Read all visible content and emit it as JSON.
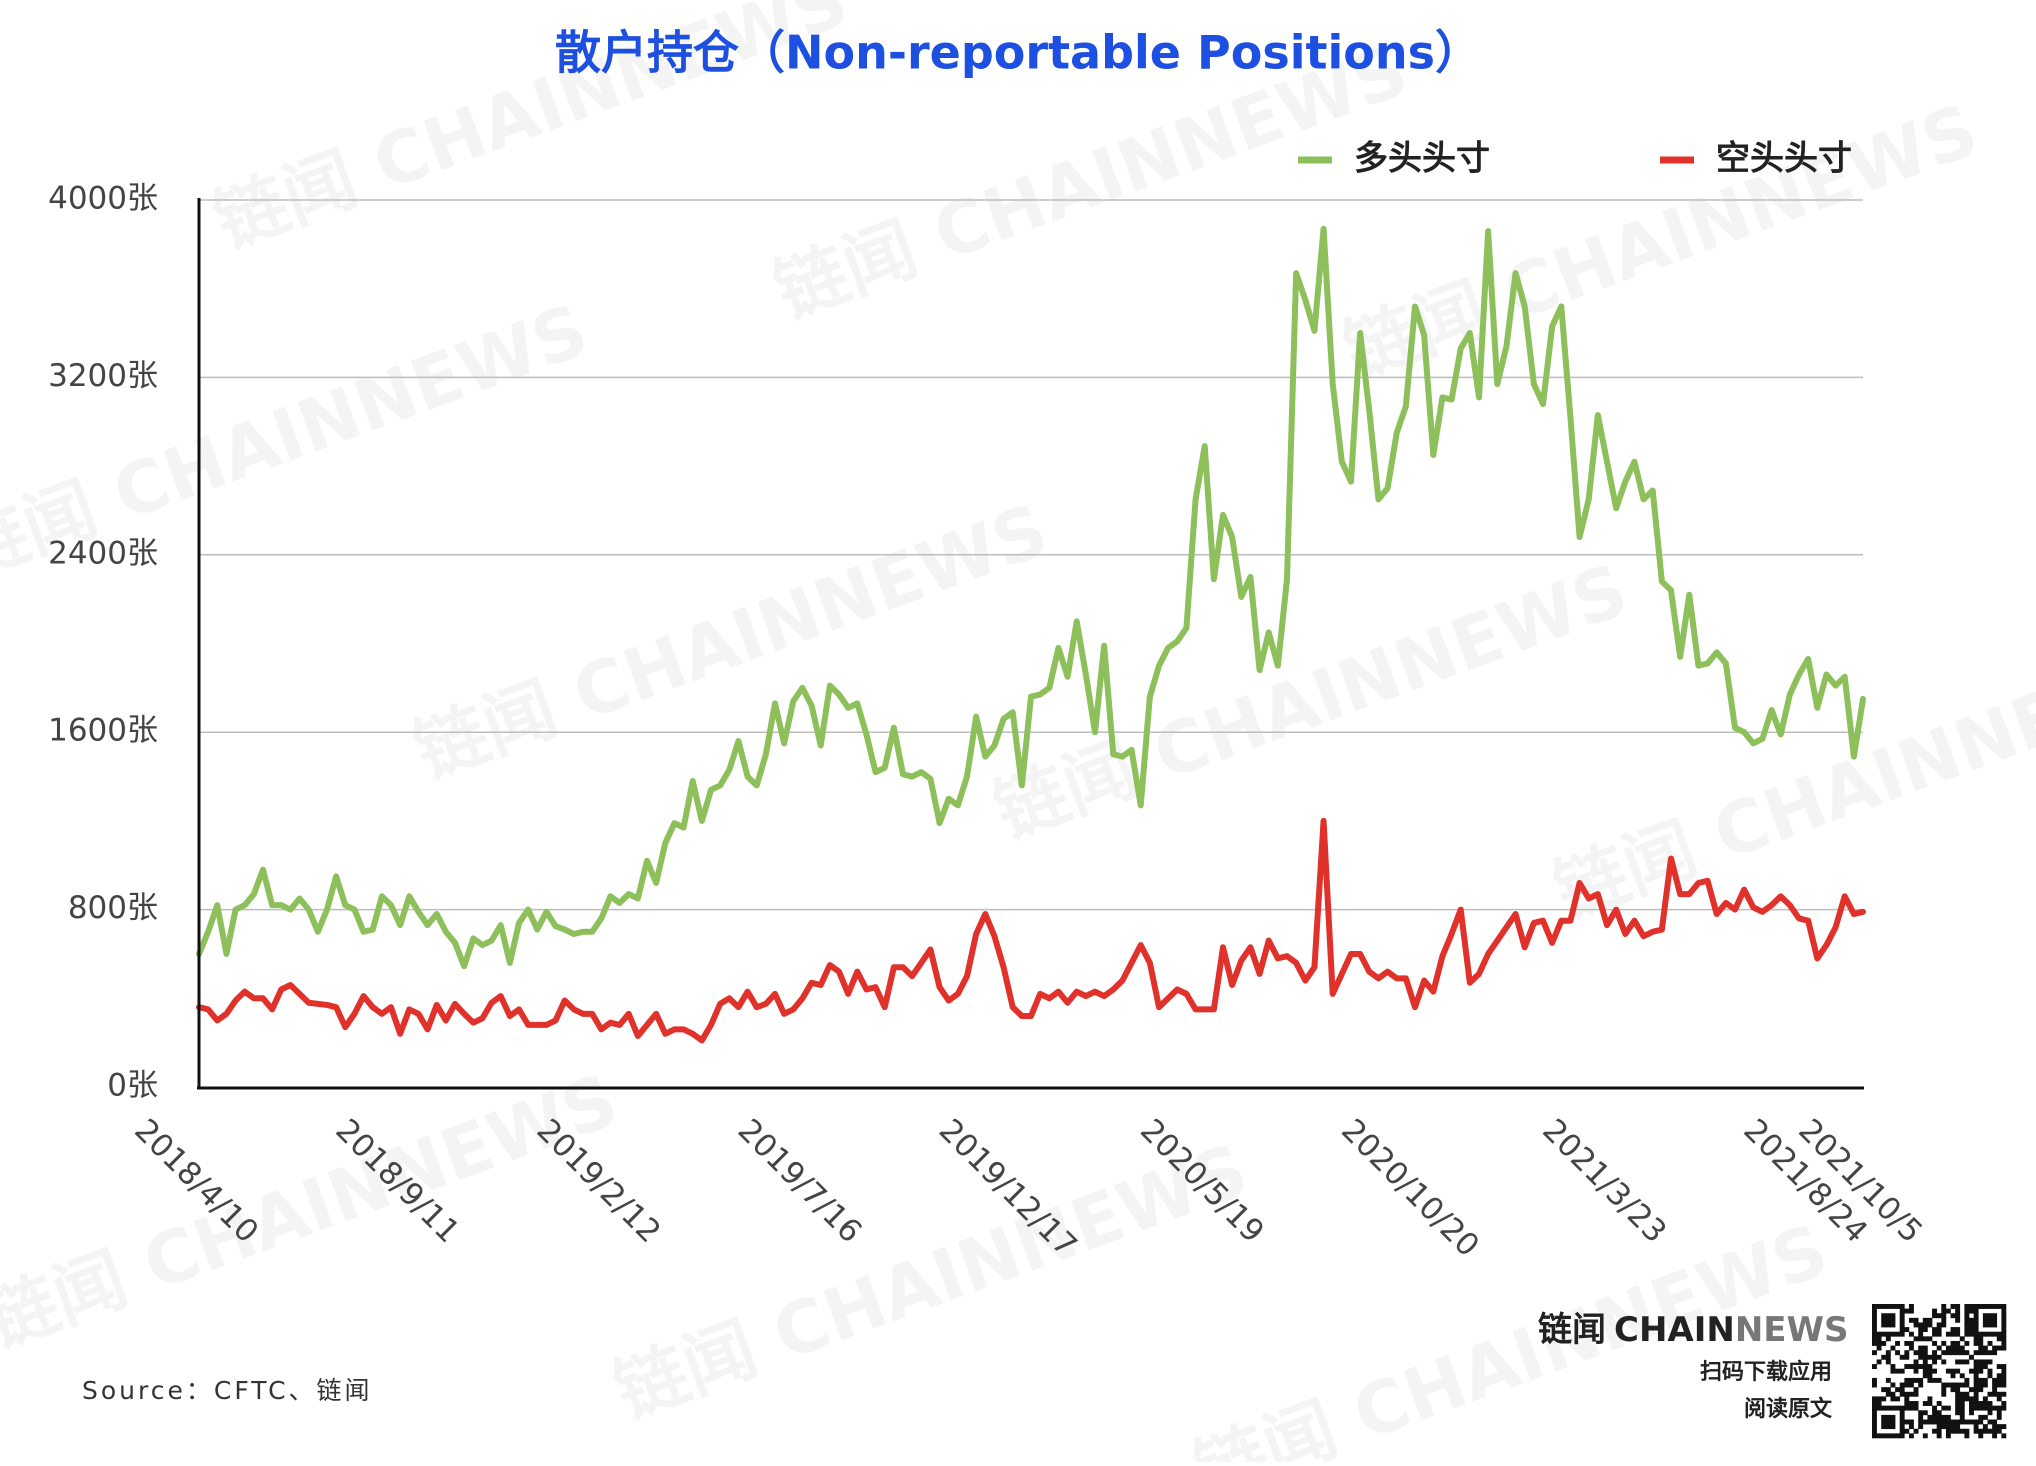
{
  "chart_data": {
    "type": "line",
    "title": "散户持仓（Non-reportable Positions）",
    "categories": [
      "2018/4/10",
      null,
      null,
      null,
      null,
      null,
      null,
      null,
      null,
      null,
      null,
      null,
      null,
      null,
      null,
      null,
      null,
      null,
      null,
      null,
      null,
      null,
      "2018/9/11",
      null,
      null,
      null,
      null,
      null,
      null,
      null,
      null,
      null,
      null,
      null,
      null,
      null,
      null,
      null,
      null,
      null,
      null,
      null,
      null,
      null,
      "2019/2/12",
      null,
      null,
      null,
      null,
      null,
      null,
      null,
      null,
      null,
      null,
      null,
      null,
      null,
      null,
      null,
      null,
      null,
      null,
      null,
      null,
      null,
      "2019/7/16",
      null,
      null,
      null,
      null,
      null,
      null,
      null,
      null,
      null,
      null,
      null,
      null,
      null,
      null,
      null,
      null,
      null,
      null,
      null,
      null,
      null,
      "2019/12/17",
      null,
      null,
      null,
      null,
      null,
      null,
      null,
      null,
      null,
      null,
      null,
      null,
      null,
      null,
      null,
      null,
      null,
      null,
      null,
      null,
      null,
      "2020/5/19",
      null,
      null,
      null,
      null,
      null,
      null,
      null,
      null,
      null,
      null,
      null,
      null,
      null,
      null,
      null,
      null,
      null,
      null,
      null,
      null,
      null,
      "2020/10/20",
      null,
      null,
      null,
      null,
      null,
      null,
      null,
      null,
      null,
      null,
      null,
      null,
      null,
      null,
      null,
      null,
      null,
      null,
      null,
      null,
      null,
      "2021/3/23",
      null,
      null,
      null,
      null,
      null,
      null,
      null,
      null,
      null,
      null,
      null,
      null,
      null,
      null,
      null,
      null,
      null,
      null,
      null,
      null,
      null,
      "2021/8/24",
      null,
      null,
      null,
      null,
      null,
      "2021/10/5"
    ],
    "series": [
      {
        "name": "多头头寸",
        "color": "#8dbf5a",
        "values": [
          600,
          700,
          820,
          600,
          800,
          820,
          870,
          980,
          820,
          820,
          800,
          850,
          800,
          700,
          800,
          950,
          820,
          800,
          700,
          710,
          860,
          820,
          730,
          860,
          790,
          730,
          780,
          700,
          650,
          545,
          670,
          640,
          660,
          730,
          560,
          740,
          800,
          710,
          790,
          725,
          710,
          690,
          700,
          700,
          760,
          860,
          830,
          870,
          850,
          1020,
          920,
          1100,
          1190,
          1170,
          1380,
          1200,
          1340,
          1360,
          1430,
          1560,
          1400,
          1360,
          1500,
          1730,
          1550,
          1740,
          1800,
          1720,
          1540,
          1810,
          1770,
          1710,
          1730,
          1590,
          1420,
          1440,
          1620,
          1410,
          1400,
          1420,
          1390,
          1190,
          1300,
          1270,
          1400,
          1670,
          1490,
          1540,
          1660,
          1690,
          1360,
          1760,
          1770,
          1800,
          1980,
          1850,
          2100,
          1860,
          1600,
          1990,
          1500,
          1490,
          1520,
          1270,
          1760,
          1900,
          1980,
          2010,
          2070,
          2650,
          2890,
          2290,
          2580,
          2480,
          2210,
          2300,
          1880,
          2050,
          1900,
          2290,
          3670,
          3550,
          3410,
          3870,
          3170,
          2820,
          2730,
          3400,
          3050,
          2650,
          2700,
          2950,
          3070,
          3520,
          3390,
          2850,
          3110,
          3100,
          3330,
          3400,
          3110,
          3860,
          3170,
          3340,
          3670,
          3520,
          3170,
          3080,
          3430,
          3520,
          3020,
          2480,
          2650,
          3030,
          2820,
          2610,
          2730,
          2820,
          2650,
          2690,
          2280,
          2240,
          1940,
          2220,
          1900,
          1910,
          1960,
          1910,
          1620,
          1600,
          1550,
          1570,
          1700,
          1590,
          1770,
          1860,
          1930,
          1710,
          1860,
          1810,
          1850,
          1490,
          1750
        ]
      },
      {
        "name": "空头头寸",
        "color": "#e0312b",
        "values": [
          360,
          350,
          300,
          330,
          390,
          430,
          400,
          400,
          350,
          440,
          460,
          420,
          380,
          375,
          370,
          360,
          270,
          330,
          410,
          360,
          330,
          360,
          240,
          350,
          330,
          260,
          370,
          300,
          375,
          330,
          290,
          310,
          380,
          410,
          320,
          350,
          280,
          280,
          280,
          300,
          390,
          350,
          330,
          330,
          260,
          290,
          280,
          330,
          230,
          280,
          330,
          240,
          260,
          260,
          240,
          210,
          280,
          375,
          400,
          360,
          430,
          360,
          375,
          420,
          330,
          350,
          400,
          470,
          460,
          550,
          520,
          420,
          520,
          440,
          450,
          360,
          540,
          540,
          500,
          560,
          620,
          450,
          390,
          420,
          500,
          690,
          780,
          680,
          540,
          360,
          320,
          320,
          420,
          400,
          430,
          380,
          430,
          410,
          430,
          410,
          440,
          480,
          560,
          640,
          560,
          360,
          400,
          440,
          420,
          350,
          350,
          350,
          630,
          460,
          570,
          630,
          510,
          660,
          580,
          590,
          560,
          480,
          540,
          1200,
          420,
          510,
          600,
          600,
          520,
          490,
          520,
          490,
          490,
          360,
          480,
          430,
          590,
          690,
          800,
          470,
          510,
          600,
          660,
          720,
          780,
          630,
          740,
          750,
          650,
          750,
          750,
          920,
          850,
          870,
          730,
          800,
          690,
          750,
          680,
          700,
          710,
          1030,
          870,
          870,
          920,
          930,
          780,
          830,
          800,
          890,
          810,
          790,
          820,
          860,
          820,
          760,
          750,
          580,
          640,
          720,
          860,
          780,
          790
        ]
      }
    ],
    "ylim": [
      0,
      4000
    ],
    "yticks": [
      {
        "value": 0,
        "label": "0张"
      },
      {
        "value": 800,
        "label": "800张"
      },
      {
        "value": 1600,
        "label": "1600张"
      },
      {
        "value": 2400,
        "label": "2400张"
      },
      {
        "value": 3200,
        "label": "3200张"
      },
      {
        "value": 4000,
        "label": "4000张"
      }
    ],
    "grid": true,
    "legend": "top-right",
    "source": "Source：CFTC、链闻"
  },
  "logo": {
    "cn": "链闻",
    "chain": "CHAIN",
    "news": "NEWS",
    "line1": "扫码下载应用",
    "line2": "阅读原文"
  },
  "watermark": "链闻 CHAINNEWS"
}
